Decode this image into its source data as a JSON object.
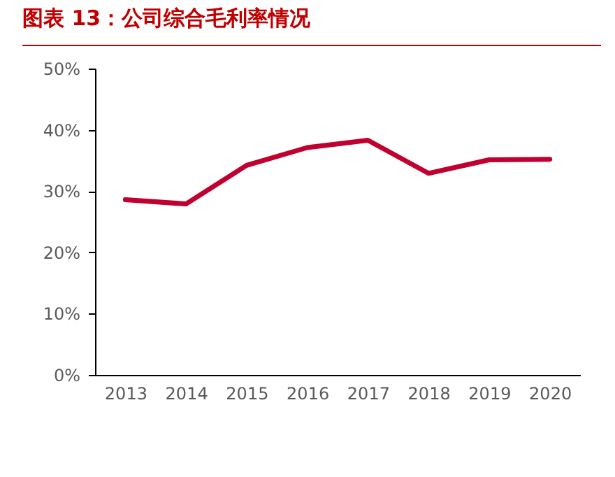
{
  "chart_data": {
    "type": "line",
    "title": "图表 13：公司综合毛利率情况",
    "categories": [
      "2013",
      "2014",
      "2015",
      "2016",
      "2017",
      "2018",
      "2019",
      "2020"
    ],
    "series": [
      {
        "color": "#c0002f",
        "values": [
          28.6,
          27.9,
          34.2,
          37.1,
          38.3,
          32.9,
          35.1,
          35.2
        ]
      }
    ],
    "ylim": [
      0,
      50
    ],
    "yticks": [
      {
        "value": 0,
        "label": "0%"
      },
      {
        "value": 10,
        "label": "10%"
      },
      {
        "value": 20,
        "label": "20%"
      },
      {
        "value": 30,
        "label": "30%"
      },
      {
        "value": 40,
        "label": "40%"
      },
      {
        "value": 50,
        "label": "50%"
      }
    ],
    "grid": false,
    "marker": "none",
    "line_style": "solid"
  }
}
